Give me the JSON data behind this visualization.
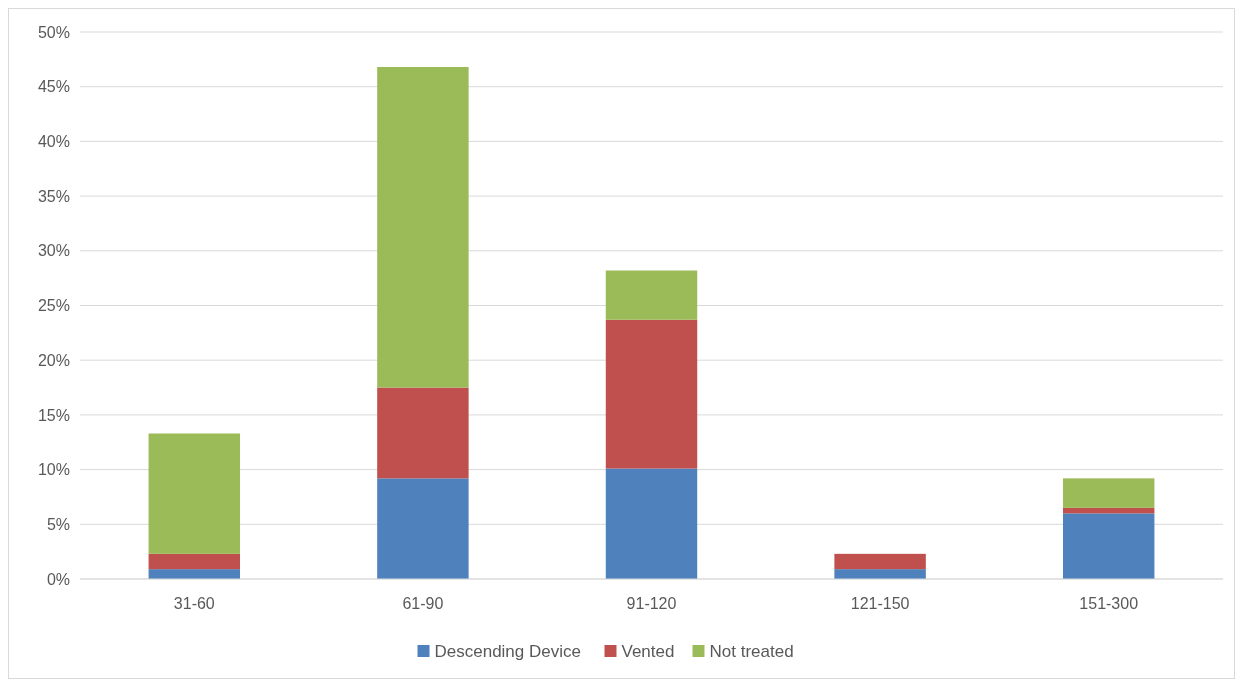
{
  "chart_data": {
    "type": "bar",
    "stacked": true,
    "categories": [
      "31-60",
      "61-90",
      "91-120",
      "121-150",
      "151-300"
    ],
    "series": [
      {
        "name": "Descending Device",
        "color": "#4f81bd",
        "values": [
          0.9,
          9.2,
          10.1,
          0.9,
          6.0
        ]
      },
      {
        "name": "Vented",
        "color": "#c0504d",
        "values": [
          1.4,
          8.3,
          13.6,
          1.4,
          0.5
        ]
      },
      {
        "name": "Not treated",
        "color": "#9bbb59",
        "values": [
          11.0,
          29.3,
          4.5,
          0,
          2.7
        ]
      }
    ],
    "ylim": [
      0,
      50
    ],
    "yticks": [
      {
        "value": 0,
        "label": "0%"
      },
      {
        "value": 5,
        "label": "5%"
      },
      {
        "value": 10,
        "label": "10%"
      },
      {
        "value": 15,
        "label": "15%"
      },
      {
        "value": 20,
        "label": "20%"
      },
      {
        "value": 25,
        "label": "25%"
      },
      {
        "value": 30,
        "label": "30%"
      },
      {
        "value": 35,
        "label": "35%"
      },
      {
        "value": 40,
        "label": "40%"
      },
      {
        "value": 45,
        "label": "45%"
      },
      {
        "value": 50,
        "label": "50%"
      }
    ],
    "grid": "y",
    "legend": "bottom"
  }
}
